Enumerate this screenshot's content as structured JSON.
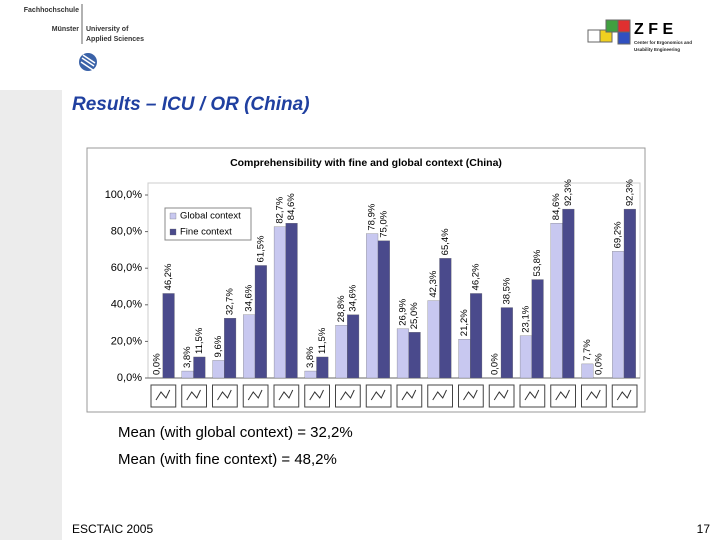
{
  "header": {
    "school_line1": "Fachhochschule",
    "school_line2": "Münster",
    "univ_line1": "University of",
    "univ_line2": "Applied Sciences",
    "zfe": "Z F E",
    "zfe_sub1": "Center for Ergonomics and",
    "zfe_sub2": "Usability Engineering"
  },
  "title": "Results – ICU / OR (China)",
  "chart_data": {
    "type": "bar",
    "title": "Comprehensibility with fine and global context (China)",
    "categories": [
      null,
      null,
      null,
      null,
      null,
      null,
      null,
      null,
      null,
      null,
      null,
      null,
      null,
      null,
      null,
      null
    ],
    "series": [
      {
        "name": "Global context",
        "color": "#c8c8f0",
        "values": [
          0.0,
          3.8,
          9.6,
          34.6,
          82.7,
          3.8,
          28.8,
          78.9,
          26.9,
          42.3,
          21.2,
          0.0,
          23.1,
          84.6,
          7.7,
          69.2
        ],
        "value_labels": [
          "0,0%",
          "3,8%",
          "9,6%",
          "34,6%",
          "82,7%",
          "3,8%",
          "28,8%",
          "78,9%",
          "26,9%",
          "42,3%",
          "21,2%",
          "0,0%",
          "23,1%",
          "84,6%",
          "7,7%",
          "69,2%"
        ]
      },
      {
        "name": "Fine context",
        "color": "#4a4a8c",
        "values": [
          46.2,
          11.5,
          32.7,
          61.5,
          84.6,
          11.5,
          34.6,
          75.0,
          25.0,
          65.4,
          46.2,
          38.5,
          53.8,
          92.3,
          0.0,
          92.3
        ],
        "value_labels": [
          "46,2%",
          "11,5%",
          "32,7%",
          "61,5%",
          "84,6%",
          "11,5%",
          "34,6%",
          "75,0%",
          "25,0%",
          "65,4%",
          "46,2%",
          "38,5%",
          "53,8%",
          "92,3%",
          "0,0%",
          "92,3%"
        ]
      }
    ],
    "ylim": [
      0,
      100
    ],
    "yticks": [
      {
        "value": 0,
        "label": "0,0%"
      },
      {
        "value": 20,
        "label": "20,0%"
      },
      {
        "value": 40,
        "label": "40,0%"
      },
      {
        "value": 60,
        "label": "60,0%"
      },
      {
        "value": 80,
        "label": "80,0%"
      },
      {
        "value": 100,
        "label": "100,0%"
      }
    ],
    "grid": false,
    "legend": "upper left"
  },
  "notes": [
    "Mean (with global context) = 32,2%",
    "Mean (with fine context) = 48,2%"
  ],
  "footer": {
    "left": "ESCTAIC 2005",
    "page": "17"
  }
}
